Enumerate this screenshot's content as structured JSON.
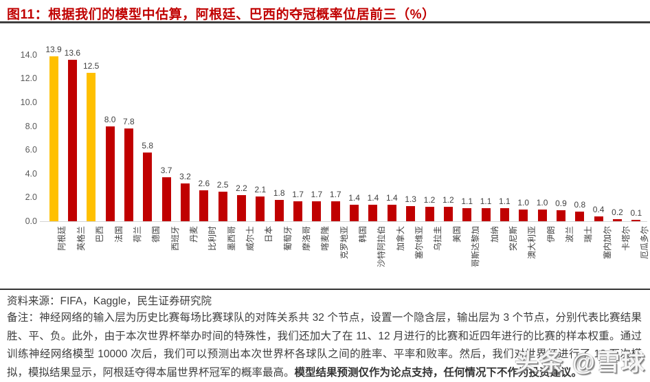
{
  "header": {
    "title": "图11：根据我们的模型中估算，阿根廷、巴西的夺冠概率位居前三（%）"
  },
  "chart_data": {
    "type": "bar",
    "title": "根据我们的模型中估算，阿根廷、巴西的夺冠概率位居前三（%）",
    "categories": [
      "阿根廷",
      "英格兰",
      "巴西",
      "法国",
      "荷兰",
      "德国",
      "西班牙",
      "丹麦",
      "比利时",
      "墨西哥",
      "威尔士",
      "日本",
      "葡萄牙",
      "摩洛哥",
      "喀麦隆",
      "克罗地亚",
      "韩国",
      "沙特阿拉伯",
      "加拿大",
      "塞尔维亚",
      "乌拉圭",
      "美国",
      "哥斯达黎加",
      "加纳",
      "突尼斯",
      "澳大利亚",
      "伊朗",
      "波兰",
      "瑞士",
      "塞内加尔",
      "卡塔尔",
      "厄瓜多尔"
    ],
    "values": [
      13.9,
      13.6,
      12.5,
      8.0,
      7.8,
      5.8,
      3.7,
      3.2,
      2.6,
      2.5,
      2.2,
      2.1,
      1.8,
      1.7,
      1.7,
      1.7,
      1.4,
      1.4,
      1.4,
      1.3,
      1.2,
      1.2,
      1.1,
      1.1,
      1.1,
      1.0,
      1.0,
      0.9,
      0.8,
      0.4,
      0.2,
      0.1
    ],
    "highlight_indices": [
      0,
      2
    ],
    "bar_color": "#c00000",
    "highlight_color": "#ffc000",
    "value_labels": true,
    "xlabel": "",
    "ylabel": "",
    "ylim": [
      0,
      14
    ],
    "yticks": [
      0,
      2,
      4,
      6,
      8,
      10,
      12,
      14
    ],
    "ytick_labels": [
      "0.0",
      "2.0",
      "4.0",
      "6.0",
      "8.0",
      "10.0",
      "12.0",
      "14.0"
    ],
    "grid": false,
    "legend": "none"
  },
  "footer": {
    "source": "资料来源：FIFA，Kaggle，民生证券研究院",
    "note_text": "备注：神经网络的输入层为历史比赛每场比赛球队的对阵关系共 32 个节点，设置一个隐含层，输出层为 3 个节点，分别代表比赛结果胜、平、负。此外，由于本次世界杯举办时间的特殊性，我们还加大了在 11、12 月进行的比赛和近四年进行的比赛的样本权重。通过训练神经网络模型 10000 次后，我们可以预测出本次世界杯各球队之间的胜率、平率和败率。然后，我们对世界杯进行了 10 万次模拟，模拟结果显示，阿根廷夺得本届世界杯冠军的概率最高。",
    "note_bold": "模型结果预测仅作为论点支持，任何情况下不作为投资建议。"
  },
  "watermark": {
    "text": "头条 @雪球"
  }
}
